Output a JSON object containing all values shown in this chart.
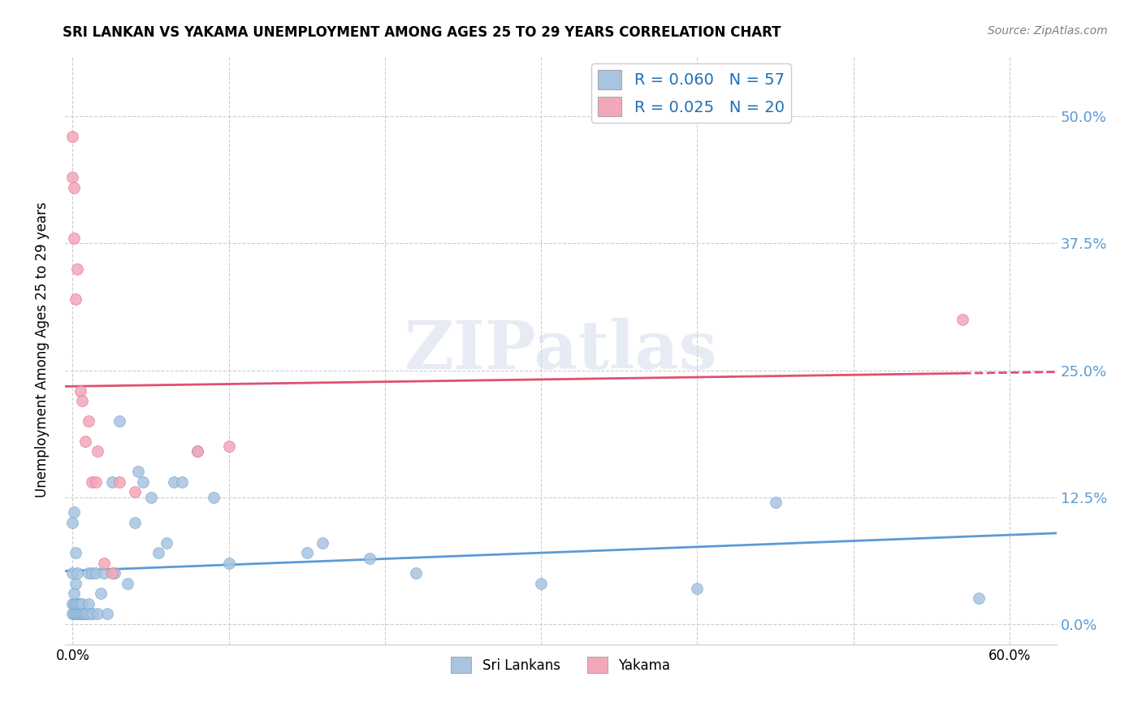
{
  "title": "SRI LANKAN VS YAKAMA UNEMPLOYMENT AMONG AGES 25 TO 29 YEARS CORRELATION CHART",
  "source": "Source: ZipAtlas.com",
  "xlabel_ticks": [
    "0.0%",
    "",
    "",
    "",
    "",
    "",
    "60.0%"
  ],
  "xlabel_vals": [
    0.0,
    0.1,
    0.2,
    0.3,
    0.4,
    0.5,
    0.6
  ],
  "ylabel": "Unemployment Among Ages 25 to 29 years",
  "ytick_labels": [
    "0.0%",
    "12.5%",
    "25.0%",
    "37.5%",
    "50.0%"
  ],
  "ytick_vals": [
    0.0,
    0.125,
    0.25,
    0.375,
    0.5
  ],
  "ylim": [
    -0.02,
    0.56
  ],
  "xlim": [
    -0.005,
    0.63
  ],
  "watermark": "ZIPatlas",
  "sri_lankans": {
    "label": "Sri Lankans",
    "color": "#a8c4e0",
    "edge_color": "#6fa8d0",
    "R": 0.06,
    "N": 57,
    "trendline_color": "#5b9bd5",
    "x": [
      0.0,
      0.0,
      0.0,
      0.0,
      0.001,
      0.001,
      0.001,
      0.001,
      0.002,
      0.002,
      0.002,
      0.002,
      0.003,
      0.003,
      0.003,
      0.004,
      0.004,
      0.005,
      0.005,
      0.006,
      0.006,
      0.007,
      0.008,
      0.009,
      0.01,
      0.01,
      0.011,
      0.012,
      0.013,
      0.015,
      0.016,
      0.018,
      0.02,
      0.022,
      0.025,
      0.027,
      0.03,
      0.035,
      0.04,
      0.042,
      0.045,
      0.05,
      0.055,
      0.06,
      0.065,
      0.07,
      0.08,
      0.09,
      0.1,
      0.15,
      0.16,
      0.19,
      0.22,
      0.3,
      0.4,
      0.45,
      0.58
    ],
    "y": [
      0.01,
      0.02,
      0.05,
      0.1,
      0.01,
      0.02,
      0.03,
      0.11,
      0.01,
      0.02,
      0.04,
      0.07,
      0.01,
      0.02,
      0.05,
      0.01,
      0.02,
      0.01,
      0.02,
      0.01,
      0.02,
      0.01,
      0.01,
      0.01,
      0.05,
      0.02,
      0.01,
      0.05,
      0.01,
      0.05,
      0.01,
      0.03,
      0.05,
      0.01,
      0.14,
      0.05,
      0.2,
      0.04,
      0.1,
      0.15,
      0.14,
      0.125,
      0.07,
      0.08,
      0.14,
      0.14,
      0.17,
      0.125,
      0.06,
      0.07,
      0.08,
      0.065,
      0.05,
      0.04,
      0.035,
      0.12,
      0.025
    ]
  },
  "yakama": {
    "label": "Yakama",
    "color": "#f4a7b9",
    "edge_color": "#e07090",
    "R": 0.025,
    "N": 20,
    "trendline_color": "#e05070",
    "x": [
      0.0,
      0.0,
      0.001,
      0.001,
      0.002,
      0.003,
      0.005,
      0.006,
      0.008,
      0.01,
      0.012,
      0.015,
      0.016,
      0.02,
      0.025,
      0.03,
      0.04,
      0.08,
      0.1,
      0.57
    ],
    "y": [
      0.44,
      0.48,
      0.38,
      0.43,
      0.32,
      0.35,
      0.23,
      0.22,
      0.18,
      0.2,
      0.14,
      0.14,
      0.17,
      0.06,
      0.05,
      0.14,
      0.13,
      0.17,
      0.175,
      0.3
    ]
  },
  "legend_R_color": "#1f6fb5",
  "background_color": "#ffffff",
  "grid_color": "#c8c8c8",
  "right_tick_color": "#5b9bd5"
}
